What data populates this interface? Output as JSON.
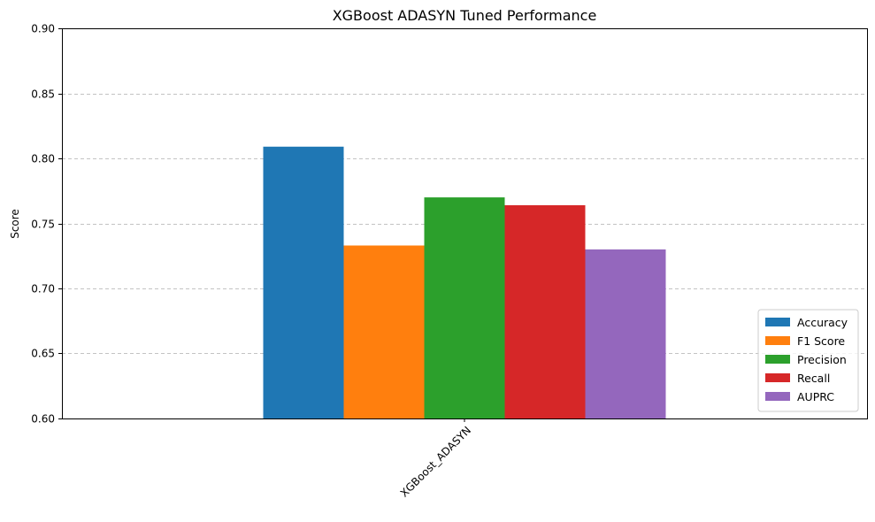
{
  "chart_data": {
    "type": "bar",
    "title": "XGBoost ADASYN Tuned Performance",
    "xlabel": "",
    "ylabel": "Score",
    "categories": [
      "XGBoost_ADASYN"
    ],
    "series": [
      {
        "name": "Accuracy",
        "values": [
          0.809
        ],
        "color": "#1f77b4"
      },
      {
        "name": "F1 Score",
        "values": [
          0.733
        ],
        "color": "#ff7f0e"
      },
      {
        "name": "Precision",
        "values": [
          0.77
        ],
        "color": "#2ca02c"
      },
      {
        "name": "Recall",
        "values": [
          0.764
        ],
        "color": "#d62728"
      },
      {
        "name": "AUPRC",
        "values": [
          0.73
        ],
        "color": "#9467bd"
      }
    ],
    "ylim": [
      0.6,
      0.9
    ],
    "yticks": [
      0.6,
      0.65,
      0.7,
      0.75,
      0.8,
      0.85,
      0.9
    ],
    "ytick_labels": [
      "0.60",
      "0.65",
      "0.70",
      "0.75",
      "0.80",
      "0.85",
      "0.90"
    ],
    "grid": "y-dashed",
    "legend_position": "bottom-right",
    "xtick_rotation_deg": 45
  }
}
